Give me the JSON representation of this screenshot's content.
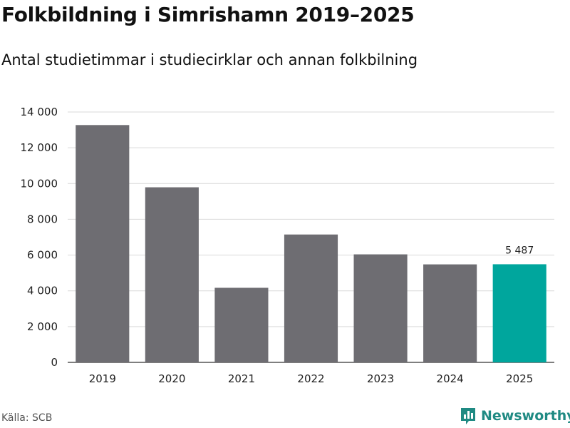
{
  "colors": {
    "bar": "#6e6d72",
    "highlight": "#00a69d",
    "grid": "#d9d9d9",
    "axis": "#333333",
    "brand": "#1f8a83"
  },
  "chart_data": {
    "type": "bar",
    "title": "Folkbildning i Simrishamn 2019–2025",
    "subtitle": "Antal studietimmar i studiecirklar och annan folkbilning",
    "categories": [
      "2019",
      "2020",
      "2021",
      "2022",
      "2023",
      "2024",
      "2025"
    ],
    "values": [
      13270,
      9790,
      4170,
      7150,
      6040,
      5480,
      5487
    ],
    "highlight_index": 6,
    "data_labels": [
      {
        "index": 6,
        "text": "5 487"
      }
    ],
    "ylim": [
      0,
      14000
    ],
    "yticks": [
      0,
      2000,
      4000,
      6000,
      8000,
      10000,
      12000,
      14000
    ],
    "ytick_labels": [
      "0",
      "2 000",
      "4 000",
      "6 000",
      "8 000",
      "10 000",
      "12 000",
      "14 000"
    ],
    "xlabel": "",
    "ylabel": "",
    "grid": true
  },
  "footer": {
    "source": "Källa: SCB",
    "brand": "Newsworthy",
    "brand_icon": "newsworthy-logo-icon"
  }
}
